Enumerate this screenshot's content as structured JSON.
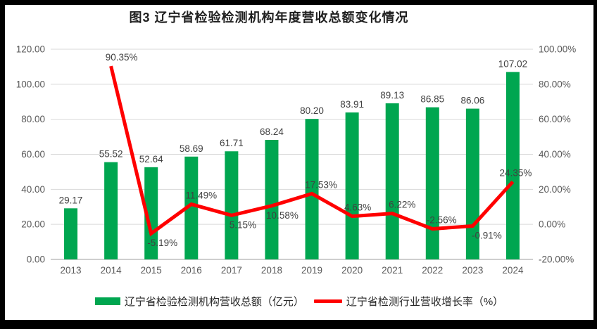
{
  "title": "图3 辽宁省检验检测机构年度营收总额变化情况",
  "colors": {
    "bar": "#00A650",
    "line": "#FF0000",
    "grid": "#D9D9D9",
    "axis_line": "#BFBFBF",
    "axis_label": "#595959",
    "data_label": "#404040",
    "background": "#FFFFFF",
    "frame": "#000000"
  },
  "chart_data": {
    "type": "combo-bar-line",
    "title": "图3 辽宁省检验检测机构年度营收总额变化情况",
    "categories": [
      "2013",
      "2014",
      "2015",
      "2016",
      "2017",
      "2018",
      "2019",
      "2020",
      "2021",
      "2022",
      "2023",
      "2024"
    ],
    "series": [
      {
        "name": "辽宁省检验检测机构营收总额（亿元）",
        "type": "bar",
        "axis": "left",
        "color": "#00A650",
        "values": [
          29.17,
          55.52,
          52.64,
          58.69,
          61.71,
          68.24,
          80.2,
          83.91,
          89.13,
          86.85,
          86.06,
          107.02
        ],
        "labels": [
          "29.17",
          "55.52",
          "52.64",
          "58.69",
          "61.71",
          "68.24",
          "80.20",
          "83.91",
          "89.13",
          "86.85",
          "86.06",
          "107.02"
        ]
      },
      {
        "name": "辽宁省检测行业营收增长率（%）",
        "type": "line",
        "axis": "right",
        "color": "#FF0000",
        "values": [
          null,
          90.35,
          -5.19,
          11.49,
          5.15,
          10.58,
          17.53,
          4.63,
          6.22,
          -2.56,
          -0.91,
          24.35
        ],
        "labels": [
          "",
          "90.35%",
          "-5.19%",
          "11.49%",
          "5.15%",
          "10.58%",
          "17.53%",
          "4.63%",
          "6.22%",
          "-2.56%",
          "-0.91%",
          "24.35%"
        ],
        "label_pos": [
          "",
          "above",
          "below",
          "above",
          "below",
          "below",
          "above",
          "above",
          "above",
          "above",
          "below",
          "above"
        ],
        "label_dx": [
          0,
          15,
          16,
          14,
          16,
          15,
          13,
          8,
          14,
          13,
          20,
          4
        ]
      }
    ],
    "left_axis": {
      "min": 0,
      "max": 120,
      "tick_values": [
        0,
        20,
        40,
        60,
        80,
        100,
        120
      ],
      "tick_labels": [
        "0.00",
        "20.00",
        "40.00",
        "60.00",
        "80.00",
        "100.00",
        "120.00"
      ]
    },
    "right_axis": {
      "min": -20,
      "max": 100,
      "tick_values": [
        -20,
        0,
        20,
        40,
        60,
        80,
        100
      ],
      "tick_labels": [
        "-20.00%",
        "0.00%",
        "20.00%",
        "40.00%",
        "60.00%",
        "80.00%",
        "100.00%"
      ]
    },
    "grid": true,
    "legend_position": "bottom"
  }
}
